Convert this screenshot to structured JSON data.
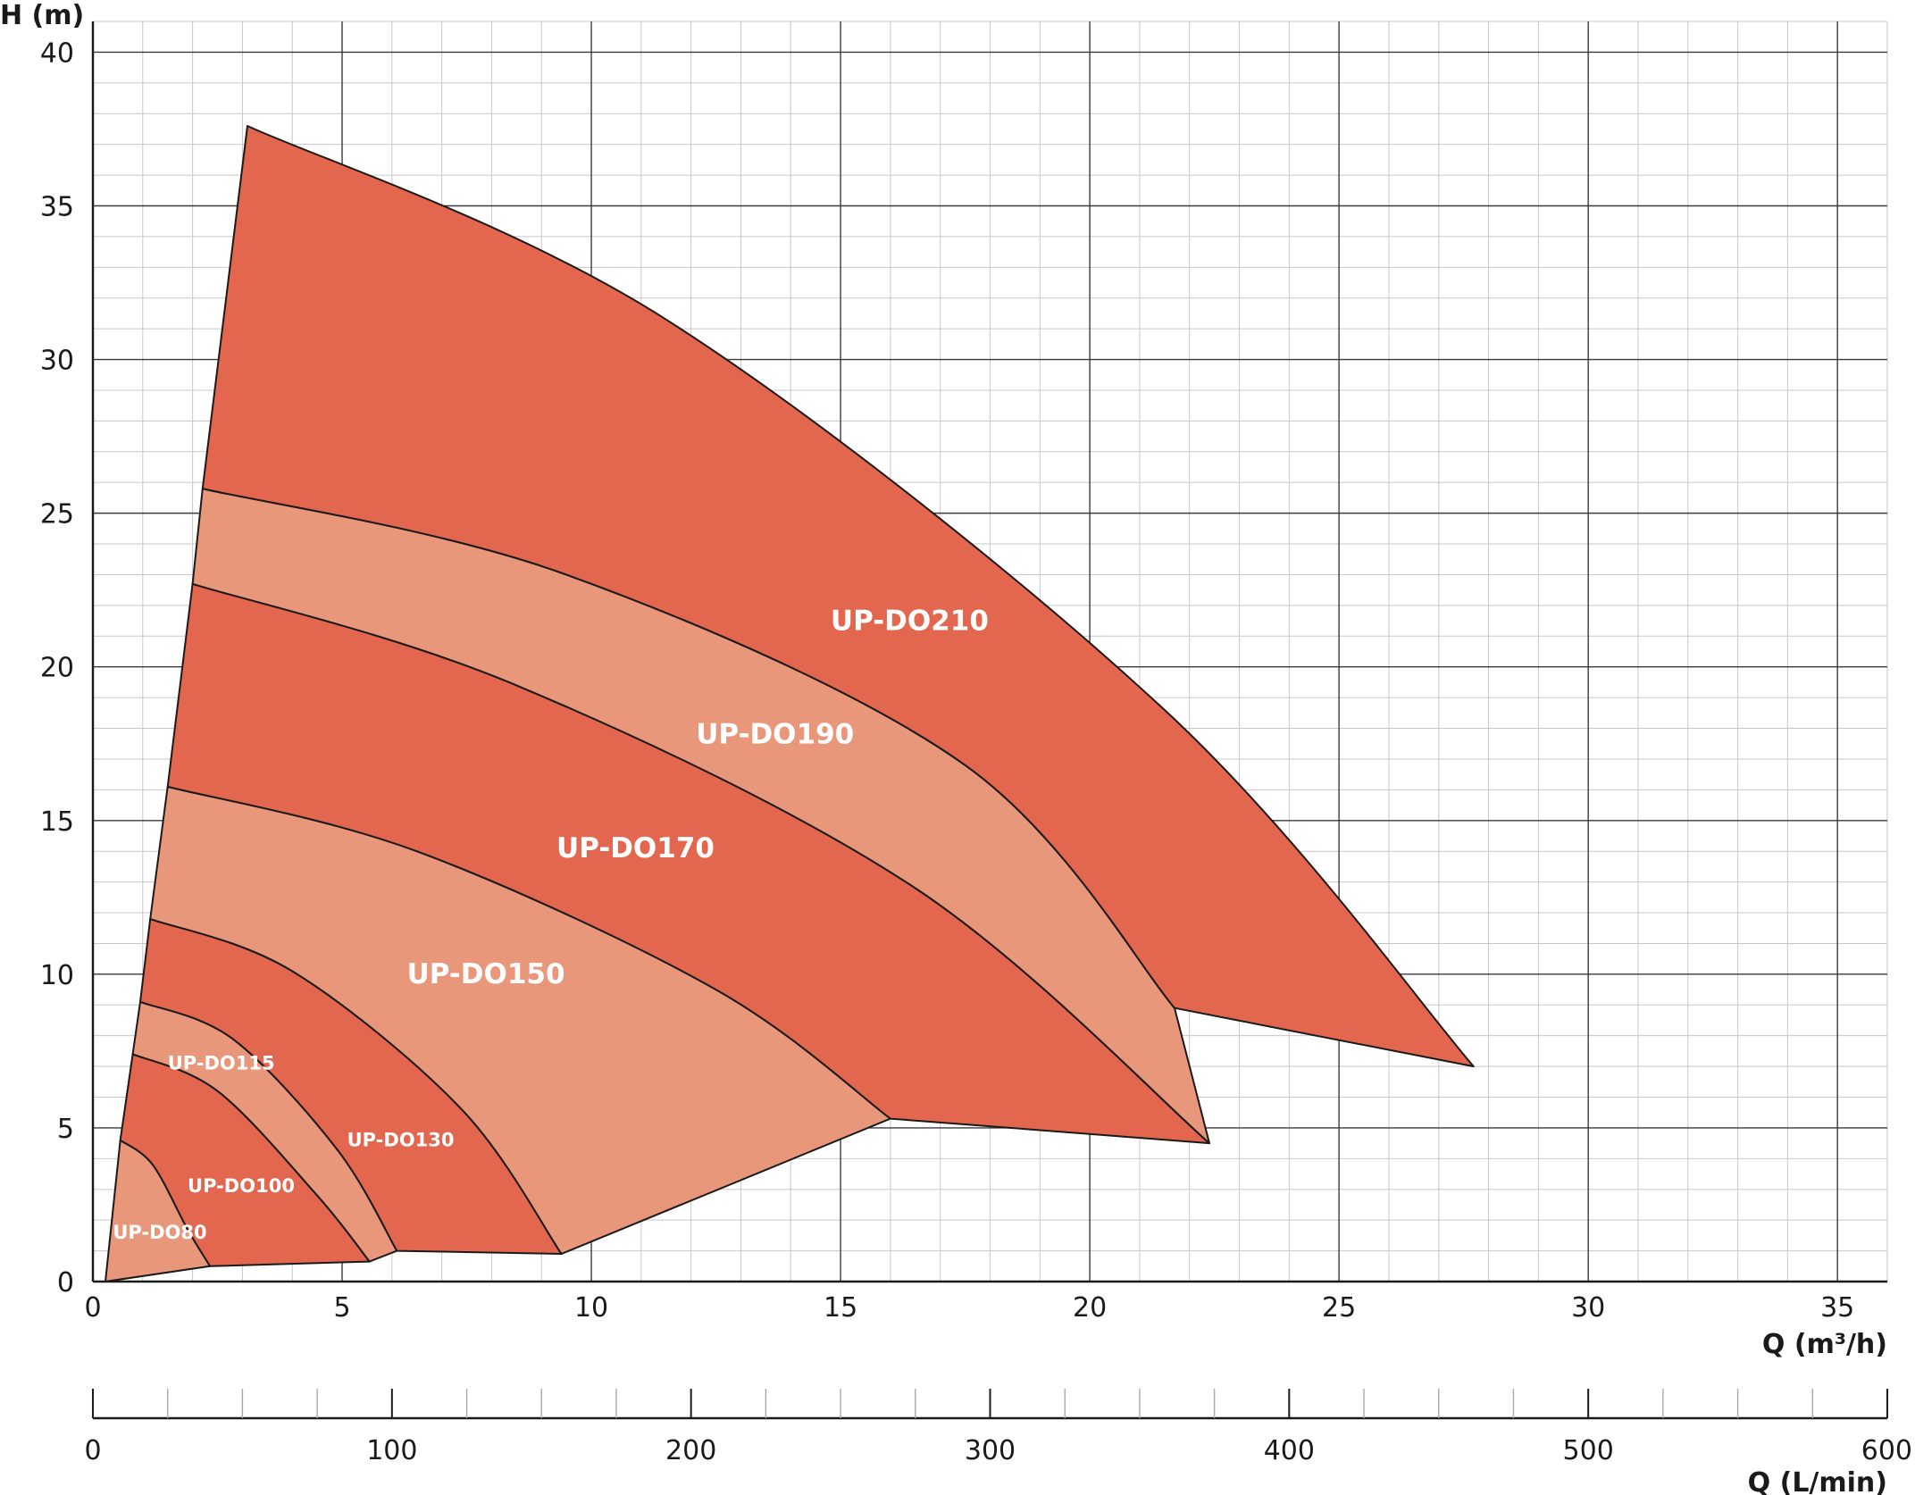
{
  "chart_data": {
    "type": "area",
    "ylabel": "H (m)",
    "xlabel": "Q (m³/h)",
    "x2label": "Q (L/min)",
    "xlim": [
      0,
      36
    ],
    "ylim": [
      0,
      41
    ],
    "x2lim": [
      0,
      600
    ],
    "grid": true,
    "xticks": [
      0,
      5,
      10,
      15,
      20,
      25,
      30,
      35
    ],
    "yticks": [
      0,
      5,
      10,
      15,
      20,
      25,
      30,
      35,
      40
    ],
    "x2ticks": [
      0,
      100,
      200,
      300,
      400,
      500,
      600
    ],
    "colors": {
      "dark": "#e2674e",
      "light": "#e9977b",
      "grid_major": "#3a3a3a",
      "grid_minor": "#c7c7c7"
    },
    "series": [
      {
        "name": "UP-DO80",
        "tone": "light",
        "upper": [
          [
            0.55,
            4.6
          ],
          [
            1.2,
            3.8
          ],
          [
            1.9,
            1.7
          ],
          [
            2.35,
            0.5
          ]
        ],
        "lower": [
          [
            0.25,
            0
          ],
          [
            2.35,
            0.5
          ]
        ]
      },
      {
        "name": "UP-DO100",
        "tone": "dark",
        "upper": [
          [
            0.8,
            7.4
          ],
          [
            2.5,
            6.2
          ],
          [
            4.5,
            2.8
          ],
          [
            5.55,
            0.65
          ]
        ],
        "lower": [
          [
            0.55,
            4.6
          ],
          [
            1.2,
            3.8
          ],
          [
            1.9,
            1.7
          ],
          [
            2.35,
            0.5
          ],
          [
            5.55,
            0.65
          ]
        ]
      },
      {
        "name": "UP-DO115",
        "tone": "light",
        "upper": [
          [
            0.95,
            9.1
          ],
          [
            2.8,
            7.9
          ],
          [
            4.9,
            4.3
          ],
          [
            6.1,
            1.0
          ]
        ],
        "lower": [
          [
            0.8,
            7.4
          ],
          [
            2.5,
            6.2
          ],
          [
            4.5,
            2.8
          ],
          [
            5.55,
            0.65
          ],
          [
            6.1,
            1.0
          ]
        ]
      },
      {
        "name": "UP-DO130",
        "tone": "dark",
        "upper": [
          [
            1.15,
            11.8
          ],
          [
            4.0,
            10.1
          ],
          [
            7.4,
            5.6
          ],
          [
            9.4,
            0.9
          ]
        ],
        "lower": [
          [
            0.95,
            9.1
          ],
          [
            2.8,
            7.9
          ],
          [
            4.9,
            4.3
          ],
          [
            6.1,
            1.0
          ],
          [
            9.4,
            0.9
          ]
        ]
      },
      {
        "name": "UP-DO150",
        "tone": "light",
        "upper": [
          [
            1.5,
            16.1
          ],
          [
            6.5,
            14.0
          ],
          [
            12.5,
            9.5
          ],
          [
            16.0,
            5.3
          ]
        ],
        "lower": [
          [
            1.15,
            11.8
          ],
          [
            4.0,
            10.1
          ],
          [
            7.4,
            5.6
          ],
          [
            9.4,
            0.9
          ],
          [
            16.0,
            5.3
          ]
        ]
      },
      {
        "name": "UP-DO170",
        "tone": "dark",
        "upper": [
          [
            2.0,
            22.7
          ],
          [
            8.5,
            19.4
          ],
          [
            16.5,
            12.8
          ],
          [
            22.4,
            4.5
          ]
        ],
        "lower": [
          [
            1.5,
            16.1
          ],
          [
            6.5,
            14.0
          ],
          [
            12.5,
            9.5
          ],
          [
            16.0,
            5.3
          ],
          [
            22.4,
            4.5
          ]
        ]
      },
      {
        "name": "UP-DO190",
        "tone": "light",
        "upper": [
          [
            2.2,
            25.8
          ],
          [
            9.5,
            23.0
          ],
          [
            17.5,
            16.8
          ],
          [
            21.7,
            8.9
          ]
        ],
        "lower": [
          [
            2.0,
            22.7
          ],
          [
            8.5,
            19.4
          ],
          [
            16.5,
            12.8
          ],
          [
            22.4,
            4.5
          ],
          [
            21.7,
            8.9
          ]
        ]
      },
      {
        "name": "UP-DO210",
        "tone": "dark",
        "upper": [
          [
            3.1,
            37.6
          ],
          [
            11.5,
            31.3
          ],
          [
            21.5,
            18.6
          ],
          [
            27.7,
            7.0
          ]
        ],
        "lower": [
          [
            2.2,
            25.8
          ],
          [
            9.5,
            23.0
          ],
          [
            17.5,
            16.8
          ],
          [
            21.7,
            8.9
          ],
          [
            27.7,
            7.0
          ]
        ]
      }
    ],
    "labels": [
      {
        "text": "UP-DO80",
        "x": 0.4,
        "y": 1.4,
        "size": "s"
      },
      {
        "text": "UP-DO100",
        "x": 1.9,
        "y": 2.9,
        "size": "s"
      },
      {
        "text": "UP-DO115",
        "x": 1.5,
        "y": 6.9,
        "size": "s"
      },
      {
        "text": "UP-DO130",
        "x": 5.1,
        "y": 4.4,
        "size": "s"
      },
      {
        "text": "UP-DO150",
        "x": 6.3,
        "y": 9.7,
        "size": "l"
      },
      {
        "text": "UP-DO170",
        "x": 9.3,
        "y": 13.8,
        "size": "l"
      },
      {
        "text": "UP-DO190",
        "x": 12.1,
        "y": 17.5,
        "size": "l"
      },
      {
        "text": "UP-DO210",
        "x": 14.8,
        "y": 21.2,
        "size": "l"
      }
    ]
  }
}
